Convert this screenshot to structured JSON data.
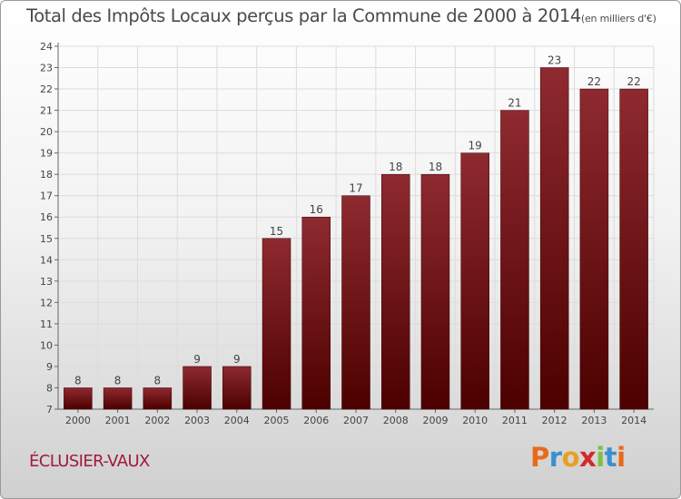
{
  "header": {
    "title": "Total des Impôts Locaux perçus par la Commune de 2000 à 2014",
    "unit": "(en milliers d'€)"
  },
  "footer": {
    "commune": "ÉCLUSIER-VAUX",
    "brand": "Proxiti"
  },
  "colors": {
    "bar_top": "#8e2a30",
    "bar_bottom": "#4c0000",
    "commune_text": "#a01a3c",
    "brand_letters": [
      "#e86a1a",
      "#3a8fd0",
      "#e8a020",
      "#d4282a",
      "#7cc04a",
      "#3a8fd0",
      "#e86a1a"
    ]
  },
  "chart_data": {
    "type": "bar",
    "title": "Total des Impôts Locaux perçus par la Commune de 2000 à 2014",
    "xlabel": "",
    "ylabel": "en milliers d'€",
    "categories": [
      "2000",
      "2001",
      "2002",
      "2003",
      "2004",
      "2005",
      "2006",
      "2007",
      "2008",
      "2009",
      "2010",
      "2011",
      "2012",
      "2013",
      "2014"
    ],
    "values": [
      8,
      8,
      8,
      9,
      9,
      15,
      16,
      17,
      18,
      18,
      19,
      21,
      23,
      22,
      22
    ],
    "ylim": [
      7,
      24
    ],
    "yticks": [
      7,
      8,
      9,
      10,
      11,
      12,
      13,
      14,
      15,
      16,
      17,
      18,
      19,
      20,
      21,
      22,
      23,
      24
    ],
    "grid": true
  }
}
